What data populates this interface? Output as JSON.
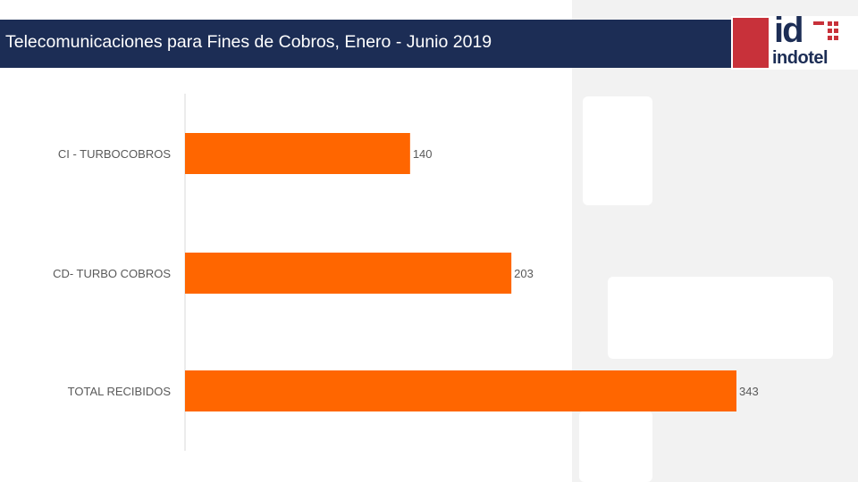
{
  "header": {
    "title": "Telecomunicaciones para Fines de Cobros, Enero - Junio 2019",
    "logo_text": "indotel",
    "logo_mark": "id"
  },
  "colors": {
    "bar": "#ff6600",
    "header_bg": "#1c2d55",
    "logo_red": "#c8313a"
  },
  "chart_data": {
    "type": "bar",
    "orientation": "horizontal",
    "categories": [
      "CI - TURBOCOBROS",
      "CD- TURBO COBROS",
      "TOTAL RECIBIDOS"
    ],
    "values": [
      140,
      203,
      343
    ],
    "title": "",
    "xlabel": "",
    "ylabel": "",
    "xlim": [
      0,
      343
    ],
    "grid": false,
    "legend": "none"
  }
}
